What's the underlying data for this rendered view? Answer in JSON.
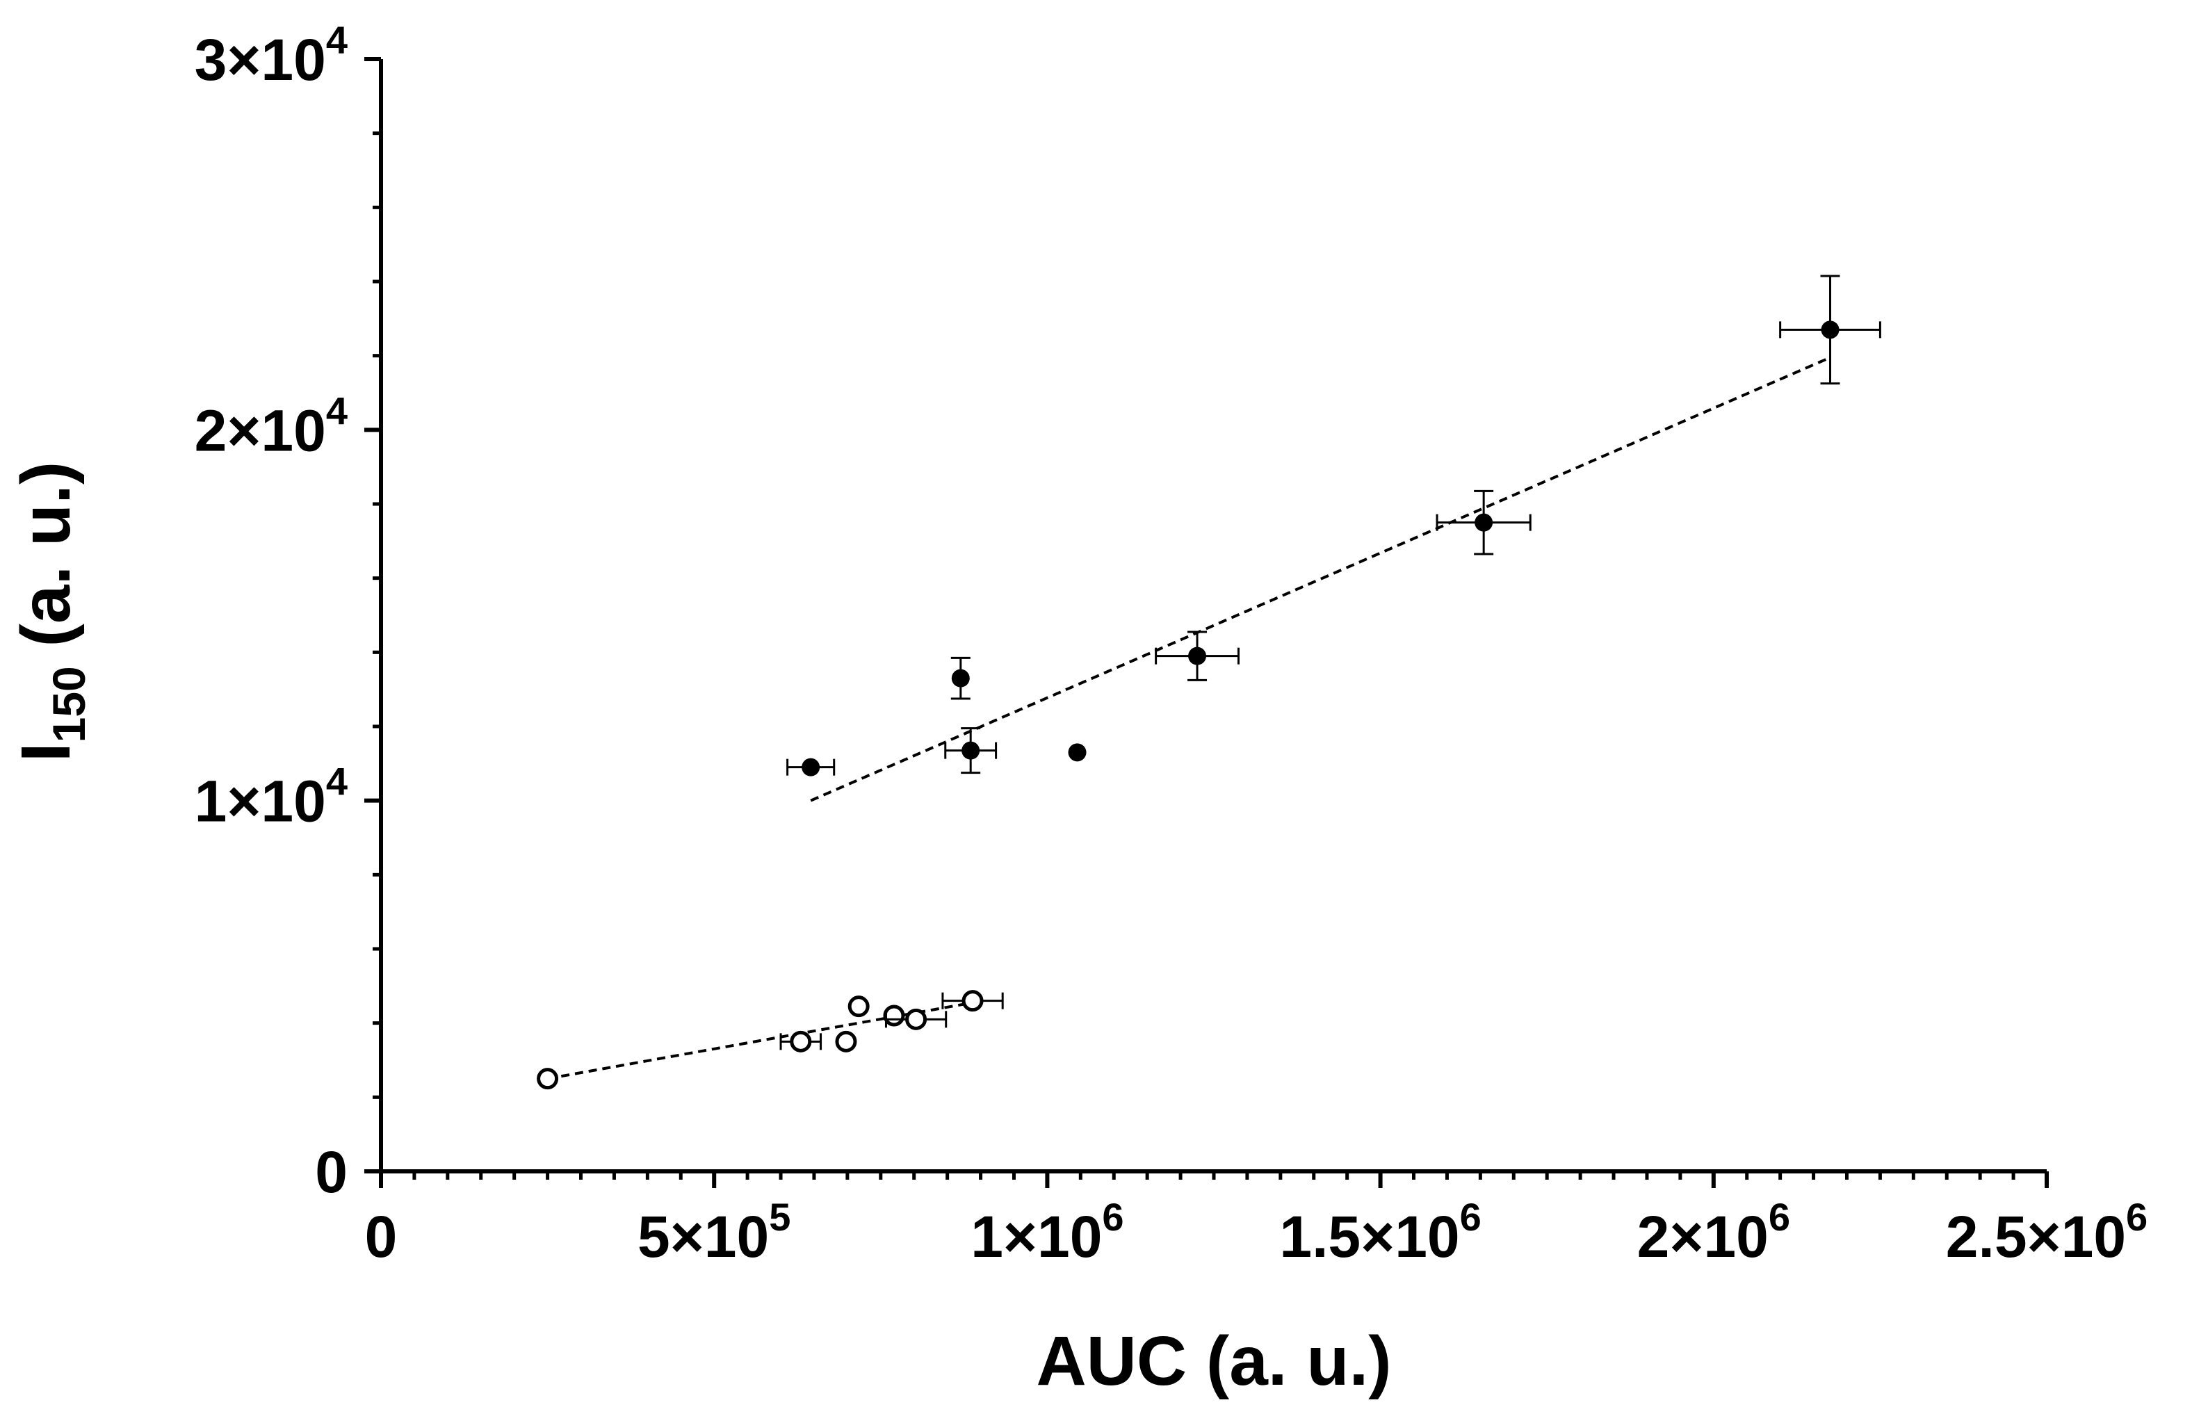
{
  "chart_data": {
    "type": "scatter",
    "xlabel": "AUC (a. u.)",
    "ylabel": {
      "main": "I",
      "subscript": "150",
      "rest": " (a. u.)"
    },
    "xlim": [
      0,
      2500000
    ],
    "ylim": [
      0,
      30000
    ],
    "xticks": [
      {
        "value": 0,
        "mantissa": "0",
        "exp": ""
      },
      {
        "value": 500000,
        "mantissa": "5×10",
        "exp": "5"
      },
      {
        "value": 1000000,
        "mantissa": "1×10",
        "exp": "6"
      },
      {
        "value": 1500000,
        "mantissa": "1.5×10",
        "exp": "6"
      },
      {
        "value": 2000000,
        "mantissa": "2×10",
        "exp": "6"
      },
      {
        "value": 2500000,
        "mantissa": "2.5×10",
        "exp": "6"
      }
    ],
    "yticks": [
      {
        "value": 0,
        "mantissa": "0",
        "exp": ""
      },
      {
        "value": 10000,
        "mantissa": "1×10",
        "exp": "4"
      },
      {
        "value": 20000,
        "mantissa": "2×10",
        "exp": "4"
      },
      {
        "value": 30000,
        "mantissa": "3×10",
        "exp": "4"
      }
    ],
    "x_minor_step": 50000,
    "y_minor_step": 2000,
    "grid": false,
    "series": [
      {
        "marker": "filled-circle",
        "points": [
          {
            "x": 645000,
            "y": 10900,
            "xerr": 35000,
            "yerr": 0
          },
          {
            "x": 870000,
            "y": 13300,
            "xerr": 0,
            "yerr": 550
          },
          {
            "x": 885000,
            "y": 11350,
            "xerr": 38000,
            "yerr": 600
          },
          {
            "x": 1045000,
            "y": 11300,
            "xerr": 0,
            "yerr": 0
          },
          {
            "x": 1225000,
            "y": 13900,
            "xerr": 62000,
            "yerr": 650
          },
          {
            "x": 1655000,
            "y": 17500,
            "xerr": 70000,
            "yerr": 850
          },
          {
            "x": 2175000,
            "y": 22700,
            "xerr": 75000,
            "yerr": 1450
          }
        ],
        "fit": {
          "x": [
            645000,
            2175000
          ],
          "y": [
            10000,
            21950
          ]
        }
      },
      {
        "marker": "open-circle",
        "points": [
          {
            "x": 250000,
            "y": 2500,
            "xerr": 0,
            "yerr": 0
          },
          {
            "x": 630000,
            "y": 3500,
            "xerr": 30000,
            "yerr": 0
          },
          {
            "x": 698000,
            "y": 3500,
            "xerr": 0,
            "yerr": 0
          },
          {
            "x": 717000,
            "y": 4450,
            "xerr": 0,
            "yerr": 0
          },
          {
            "x": 770000,
            "y": 4200,
            "xerr": 0,
            "yerr": 0
          },
          {
            "x": 803000,
            "y": 4100,
            "xerr": 45000,
            "yerr": 0
          },
          {
            "x": 888000,
            "y": 4600,
            "xerr": 45000,
            "yerr": 0
          }
        ],
        "fit": {
          "x": [
            250000,
            888000
          ],
          "y": [
            2500,
            4550
          ]
        }
      }
    ]
  }
}
